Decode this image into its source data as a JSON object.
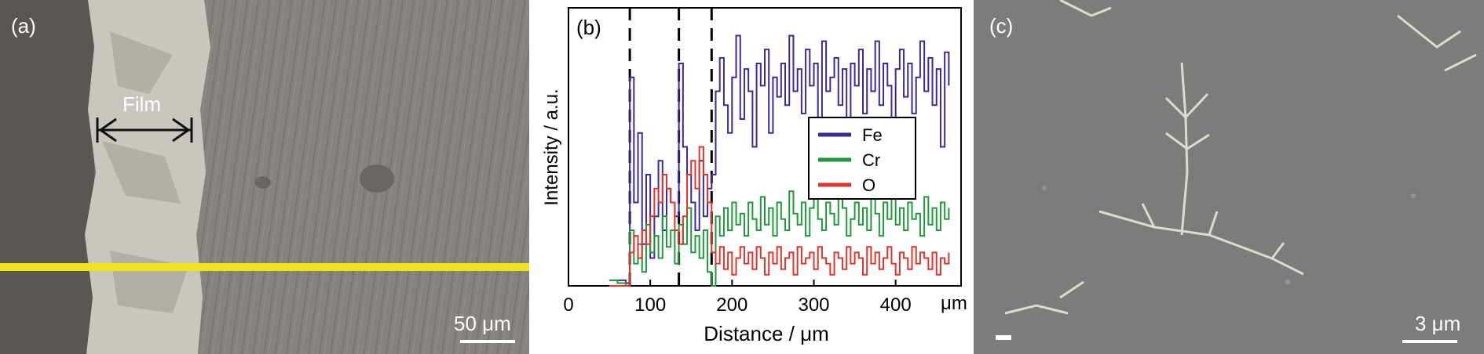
{
  "panels": {
    "a": {
      "label": "(a)",
      "film_label": "Film",
      "scale_label": "50 μm",
      "line_color": "#f2e21b"
    },
    "b": {
      "label": "(b)"
    },
    "c": {
      "label": "(c)",
      "scale_label": "3 μm"
    }
  },
  "chart_data": {
    "type": "line",
    "title": "",
    "xlabel": "Distance / μm",
    "ylabel": "Intensity / a.u.",
    "x_unit_label": "μm",
    "xlim": [
      0,
      480
    ],
    "ylim": [
      0,
      100
    ],
    "xticks": [
      0,
      100,
      200,
      300,
      400
    ],
    "grid": false,
    "legend_position": "center-right",
    "boundaries": [
      75,
      135,
      175
    ],
    "series": [
      {
        "name": "Fe",
        "color": "#3c2a96",
        "x": [
          50,
          60,
          70,
          75,
          80,
          85,
          90,
          95,
          100,
          105,
          110,
          115,
          120,
          125,
          130,
          135,
          140,
          145,
          150,
          155,
          160,
          165,
          170,
          175,
          180,
          185,
          190,
          195,
          200,
          205,
          210,
          215,
          220,
          225,
          230,
          235,
          240,
          245,
          250,
          255,
          260,
          265,
          270,
          275,
          280,
          285,
          290,
          295,
          300,
          305,
          310,
          315,
          320,
          325,
          330,
          335,
          340,
          345,
          350,
          355,
          360,
          365,
          370,
          375,
          380,
          385,
          390,
          395,
          400,
          405,
          410,
          415,
          420,
          425,
          430,
          435,
          440,
          445,
          450,
          455,
          460,
          465
        ],
        "y": [
          2,
          2,
          1,
          75,
          30,
          55,
          15,
          40,
          10,
          25,
          45,
          20,
          35,
          30,
          25,
          80,
          50,
          40,
          30,
          20,
          45,
          25,
          35,
          40,
          70,
          82,
          65,
          55,
          75,
          90,
          60,
          78,
          70,
          50,
          80,
          72,
          85,
          55,
          75,
          68,
          80,
          65,
          90,
          70,
          78,
          62,
          85,
          72,
          80,
          60,
          88,
          70,
          75,
          82,
          65,
          78,
          58,
          80,
          72,
          85,
          62,
          78,
          70,
          88,
          65,
          80,
          72,
          55,
          78,
          85,
          68,
          80,
          62,
          75,
          88,
          70,
          82,
          65,
          78,
          50,
          84,
          72
        ]
      },
      {
        "name": "Cr",
        "color": "#1f9a3a",
        "x": [
          50,
          60,
          70,
          75,
          80,
          85,
          90,
          95,
          100,
          105,
          110,
          115,
          120,
          125,
          130,
          135,
          140,
          145,
          150,
          155,
          160,
          165,
          170,
          175,
          180,
          185,
          190,
          195,
          200,
          205,
          210,
          215,
          220,
          225,
          230,
          235,
          240,
          245,
          250,
          255,
          260,
          265,
          270,
          275,
          280,
          285,
          290,
          295,
          300,
          305,
          310,
          315,
          320,
          325,
          330,
          335,
          340,
          345,
          350,
          355,
          360,
          365,
          370,
          375,
          380,
          385,
          390,
          395,
          400,
          405,
          410,
          415,
          420,
          425,
          430,
          435,
          440,
          445,
          450,
          455,
          460,
          465
        ],
        "y": [
          2,
          1,
          0,
          20,
          8,
          15,
          5,
          22,
          12,
          18,
          10,
          25,
          14,
          20,
          8,
          22,
          15,
          28,
          12,
          18,
          10,
          20,
          5,
          0,
          25,
          18,
          28,
          20,
          30,
          22,
          26,
          18,
          30,
          24,
          20,
          32,
          22,
          28,
          18,
          30,
          24,
          20,
          34,
          26,
          22,
          30,
          18,
          28,
          32,
          24,
          20,
          30,
          26,
          22,
          34,
          28,
          18,
          24,
          30,
          22,
          28,
          20,
          32,
          26,
          18,
          30,
          24,
          36,
          22,
          28,
          20,
          30,
          24,
          26,
          18,
          32,
          22,
          28,
          20,
          30,
          24,
          28
        ]
      },
      {
        "name": "O",
        "color": "#e0342c",
        "x": [
          50,
          60,
          70,
          75,
          80,
          85,
          90,
          95,
          100,
          105,
          110,
          115,
          120,
          125,
          130,
          135,
          140,
          145,
          150,
          155,
          160,
          165,
          170,
          175,
          180,
          185,
          190,
          195,
          200,
          205,
          210,
          215,
          220,
          225,
          230,
          235,
          240,
          245,
          250,
          255,
          260,
          265,
          270,
          275,
          280,
          285,
          290,
          295,
          300,
          305,
          310,
          315,
          320,
          325,
          330,
          335,
          340,
          345,
          350,
          355,
          360,
          365,
          370,
          375,
          380,
          385,
          390,
          395,
          400,
          405,
          410,
          415,
          420,
          425,
          430,
          435,
          440,
          445,
          450,
          455,
          460,
          465
        ],
        "y": [
          0,
          0,
          0,
          12,
          18,
          10,
          20,
          15,
          25,
          35,
          30,
          40,
          35,
          30,
          20,
          15,
          25,
          40,
          45,
          35,
          50,
          40,
          30,
          12,
          8,
          14,
          6,
          12,
          4,
          10,
          14,
          8,
          12,
          6,
          14,
          10,
          4,
          12,
          8,
          14,
          6,
          10,
          12,
          4,
          14,
          8,
          10,
          12,
          6,
          14,
          10,
          8,
          4,
          12,
          10,
          6,
          14,
          8,
          12,
          10,
          4,
          14,
          8,
          12,
          6,
          10,
          14,
          8,
          4,
          12,
          10,
          6,
          14,
          8,
          12,
          10,
          6,
          12,
          4,
          10,
          8,
          12
        ]
      }
    ]
  }
}
